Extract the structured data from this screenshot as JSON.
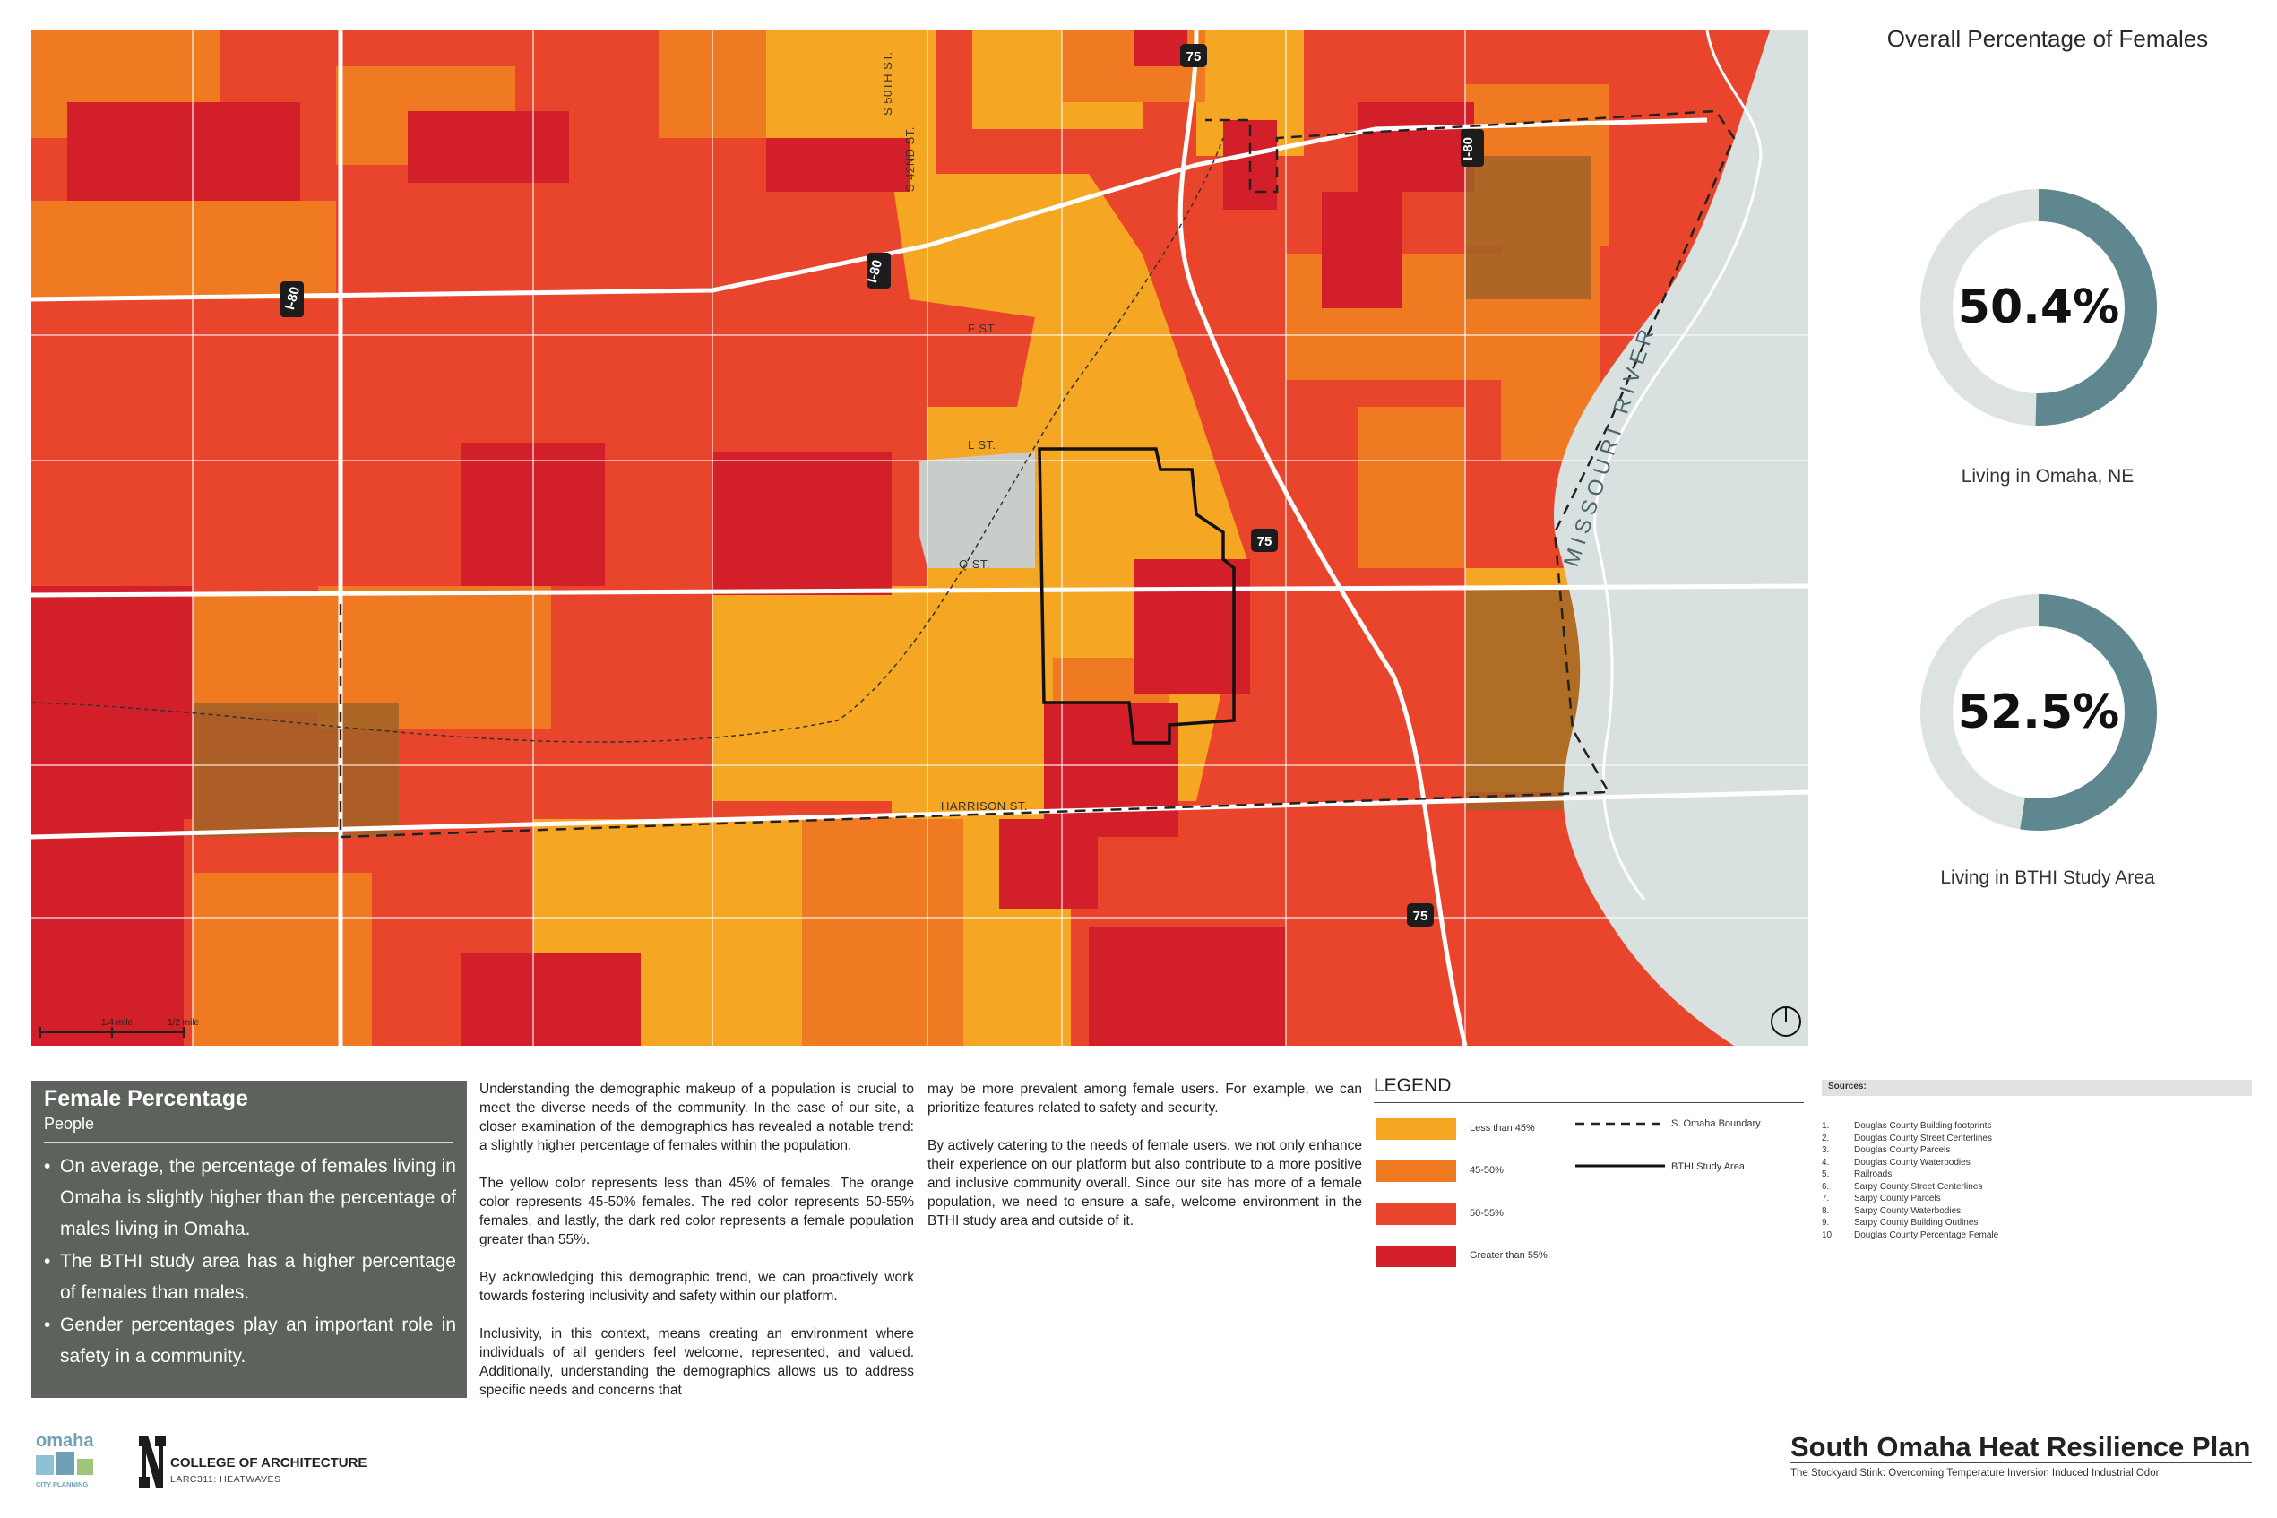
{
  "map": {
    "street_labels": [
      "S 50TH ST.",
      "S 42ND ST.",
      "F ST.",
      "L ST.",
      "Q ST.",
      "HARRISON ST."
    ],
    "highway_labels": [
      "I-80",
      "I-80",
      "I-80",
      "75",
      "75",
      "75"
    ],
    "river_label": "MISSOURI RIVER",
    "scale_labels": [
      "1/4 mile",
      "1/2 mile"
    ],
    "colors": {
      "less_than_45": "#f5a623",
      "45_50": "#f07a22",
      "50_55": "#e9442c",
      "greater_than_55": "#d21f2a",
      "study_area_outline": "#111111",
      "river": "#d8e1df"
    }
  },
  "right_panel": {
    "title": "Overall Percentage of Females",
    "donuts": [
      {
        "value_text": "50.4%",
        "value": 50.4,
        "caption": "Living in Omaha, NE"
      },
      {
        "value_text": "52.5%",
        "value": 52.5,
        "caption": "Living in BTHI Study Area"
      }
    ],
    "ring_color": "#5f8790",
    "ring_track_color": "#dde3df"
  },
  "infobox": {
    "title": "Female Percentage",
    "subtitle": "People",
    "bullets": [
      "On average, the percentage of females living in Omaha is slightly higher than the percentage of males living in Omaha.",
      "The BTHI study area has a higher percentage of females than males.",
      "Gender percentages play an important role in safety in a community."
    ]
  },
  "body_text": {
    "column1": [
      "Understanding the demographic makeup of a population is crucial to meet the diverse needs of the community. In the case of our site, a closer examination of the demographics has revealed a notable trend: a slightly higher percentage of females within the population.",
      "The yellow color represents less than 45% of females. The orange color represents 45-50% females. The red color represents 50-55% females, and lastly, the dark red color represents a female population greater than 55%.",
      "By acknowledging this demographic trend, we can proactively work towards fostering inclusivity and safety within our platform.",
      "Inclusivity, in this context, means creating an environment where individuals of all genders feel welcome, represented, and valued. Additionally, understanding the demographics allows us to address specific needs and concerns that"
    ],
    "column2": [
      "may be more prevalent among female users. For example, we can prioritize features related to safety and security.",
      "By actively catering to the needs of female users, we not only enhance their experience on our platform but also contribute to a more positive and inclusive community overall. Since our site has more of a female population, we need to ensure a safe, welcome environment in the BTHI study area and outside of it."
    ]
  },
  "legend": {
    "title": "LEGEND",
    "items": [
      {
        "label": "Less than 45%",
        "color": "#f5a623"
      },
      {
        "label": "45-50%",
        "color": "#f07a22"
      },
      {
        "label": "50-55%",
        "color": "#e9442c"
      },
      {
        "label": "Greater than 55%",
        "color": "#d21f2a"
      }
    ],
    "line_items": [
      {
        "label": "S. Omaha Boundary",
        "style": "dashed"
      },
      {
        "label": "BTHI Study Area",
        "style": "solid"
      }
    ]
  },
  "sources": {
    "title": "Sources:",
    "items": [
      {
        "num": "1.",
        "text": "Douglas County Building footprints"
      },
      {
        "num": "2.",
        "text": "Douglas County Street Centerlines"
      },
      {
        "num": "3.",
        "text": "Douglas County Parcels"
      },
      {
        "num": "4.",
        "text": "Douglas County Waterbodies"
      },
      {
        "num": "5.",
        "text": "Railroads"
      },
      {
        "num": "6.",
        "text": "Sarpy County Street Centerlines"
      },
      {
        "num": "7.",
        "text": "Sarpy County Parcels"
      },
      {
        "num": "8.",
        "text": "Sarpy County Waterbodies"
      },
      {
        "num": "9.",
        "text": "Sarpy County Building Outlines"
      },
      {
        "num": "10.",
        "text": "Douglas County Percentage Female"
      }
    ]
  },
  "footer": {
    "title": "South Omaha Heat Resilience Plan",
    "subtitle": "The Stockyard Stink: Overcoming Temperature Inversion Induced Industrial Odor",
    "college": "COLLEGE OF ARCHITECTURE",
    "course": "LARC311: HEATWAVES",
    "omaha_logo_word": "omaha",
    "omaha_logo_sub": "CITY PLANNING"
  }
}
